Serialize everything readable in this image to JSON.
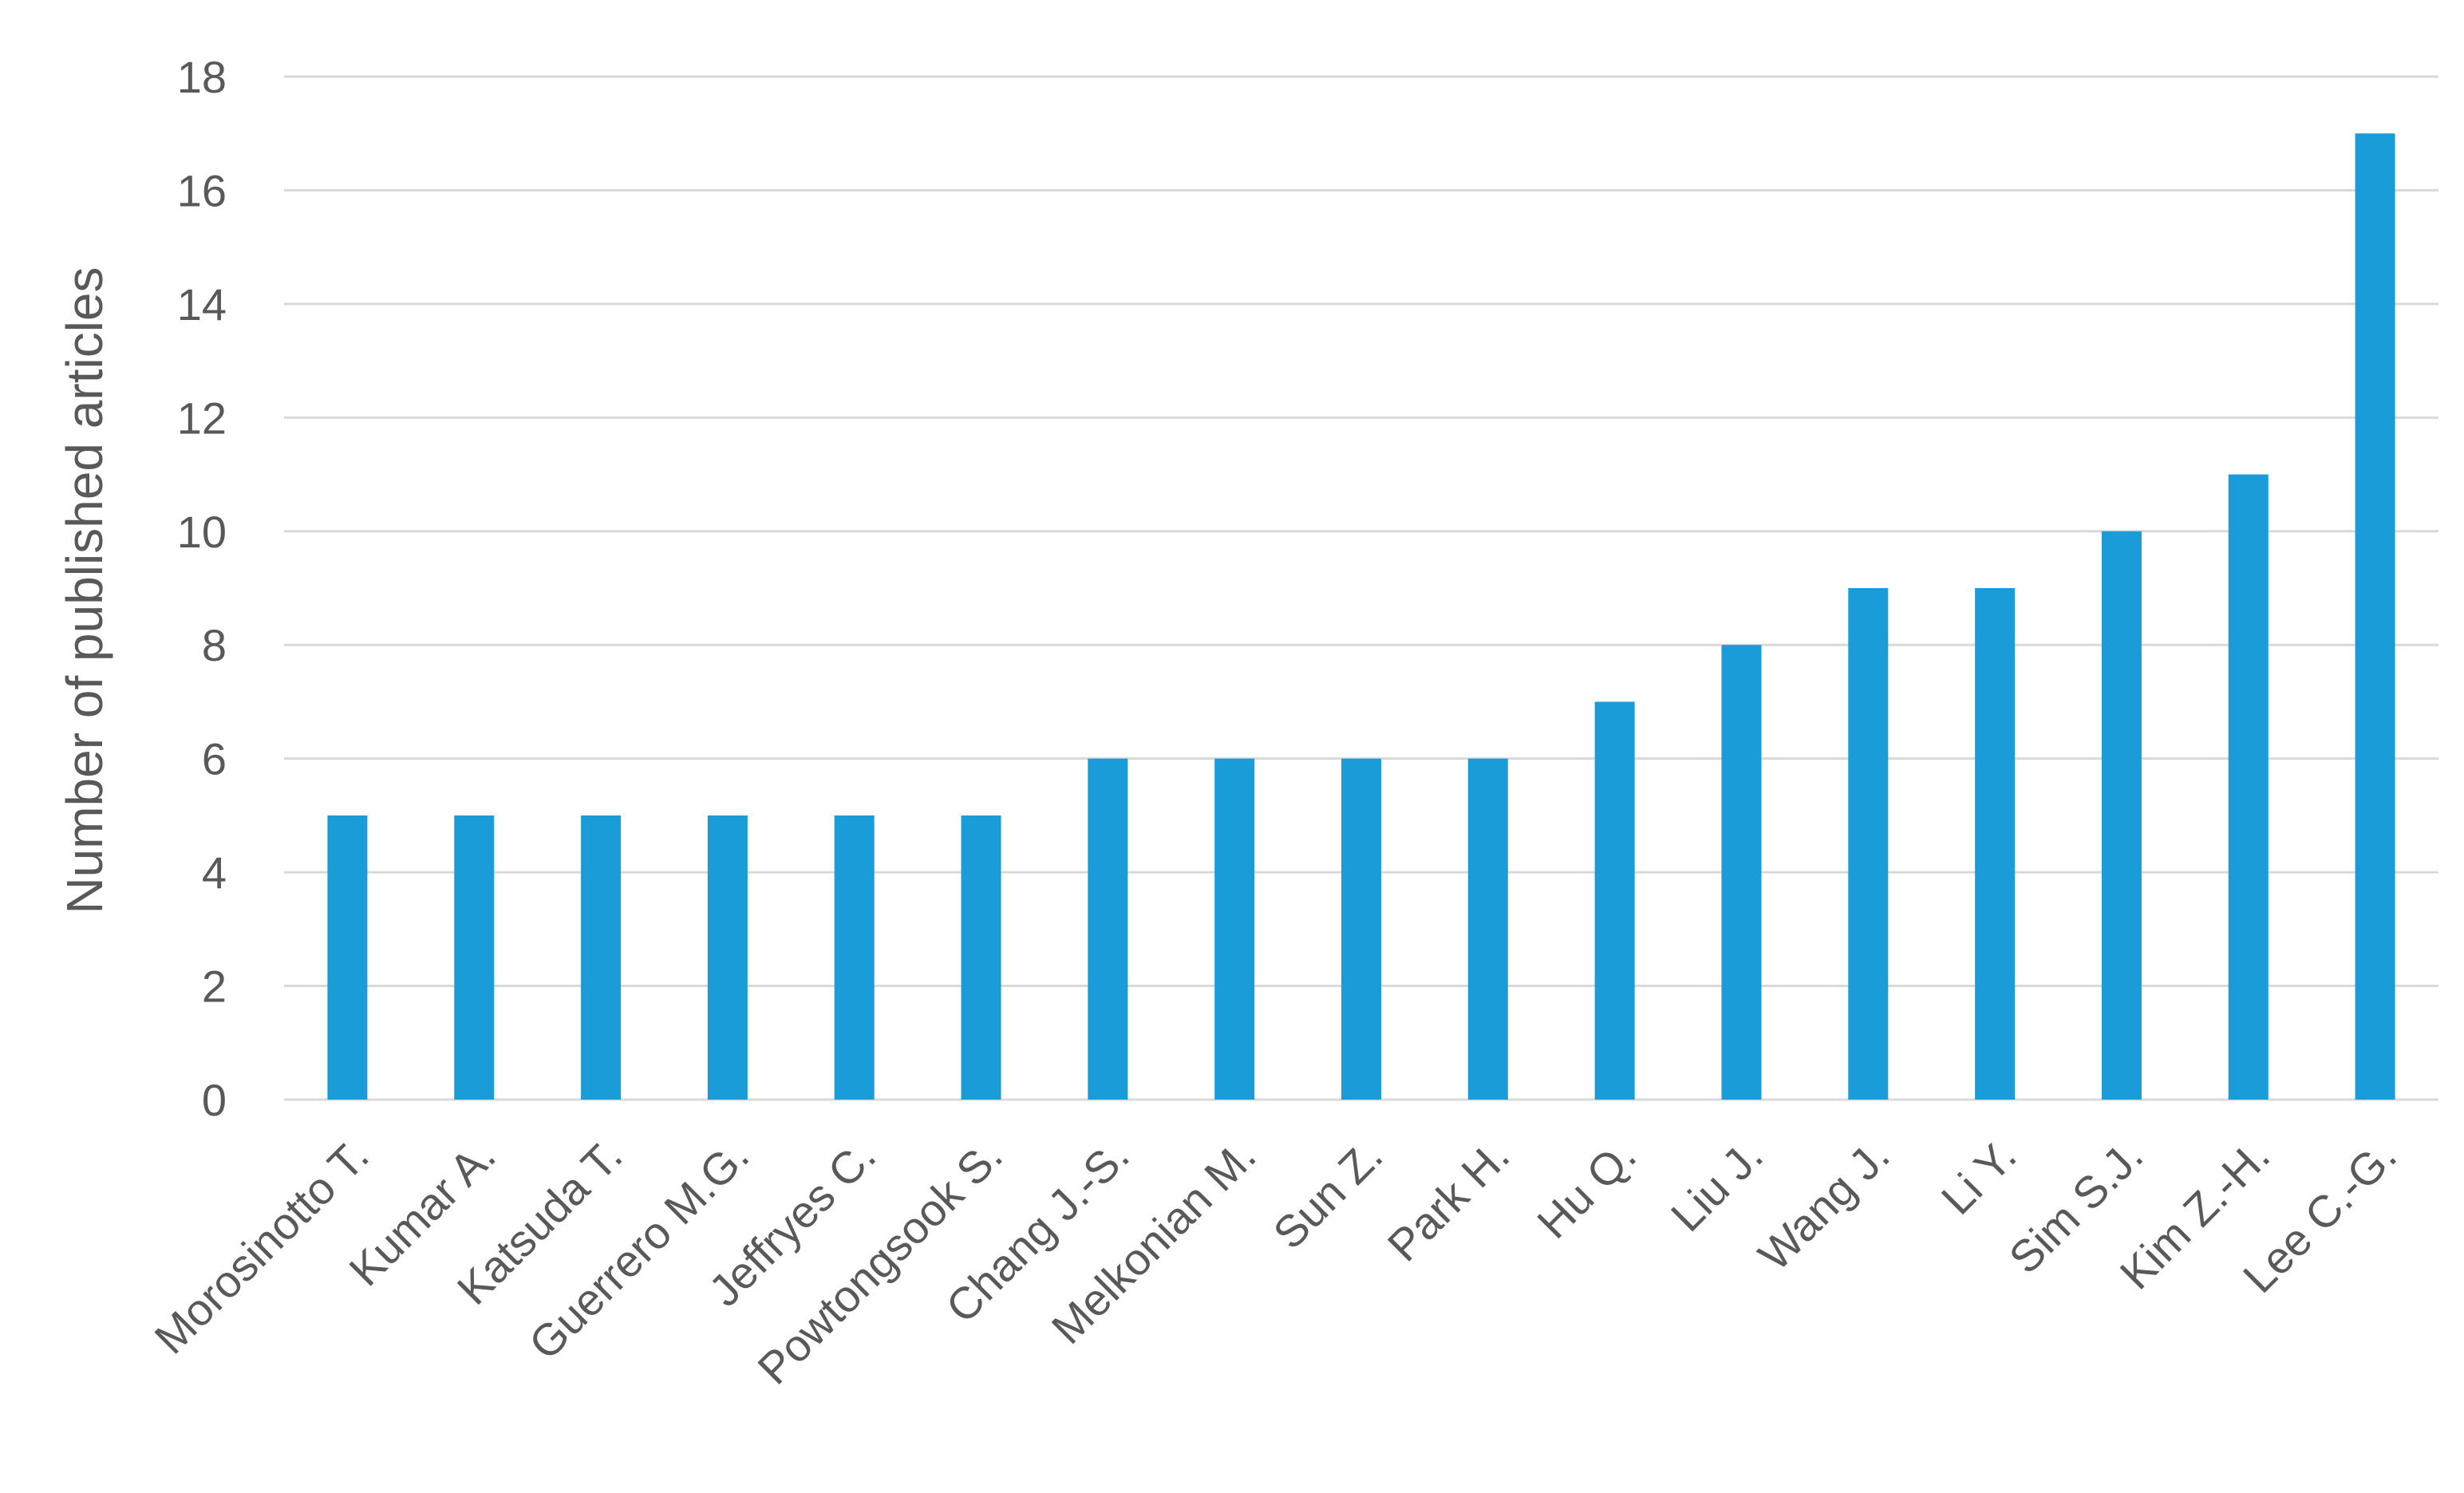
{
  "chart_data": {
    "type": "bar",
    "title": "",
    "xlabel": "",
    "ylabel": "Number of published articles",
    "ylim": [
      0,
      18
    ],
    "yticks": [
      0,
      2,
      4,
      6,
      8,
      10,
      12,
      14,
      16,
      18
    ],
    "grid": true,
    "legend": "none",
    "bar_color": "#1a9cd8",
    "categories": [
      "Morosinotto T.",
      "Kumar A.",
      "Katsuda T.",
      "Guerrero M.G.",
      "Jeffryes C.",
      "Powtongsook S.",
      "Chang J.-S.",
      "Melkonian M.",
      "Sun Z.",
      "Park H.",
      "Hu Q.",
      "Liu J.",
      "Wang J.",
      "Li Y.",
      "Sim S.J.",
      "Kim Z.-H.",
      "Lee C.-G."
    ],
    "values": [
      5,
      5,
      5,
      5,
      5,
      5,
      6,
      6,
      6,
      6,
      7,
      8,
      9,
      9,
      10,
      11,
      17
    ]
  }
}
